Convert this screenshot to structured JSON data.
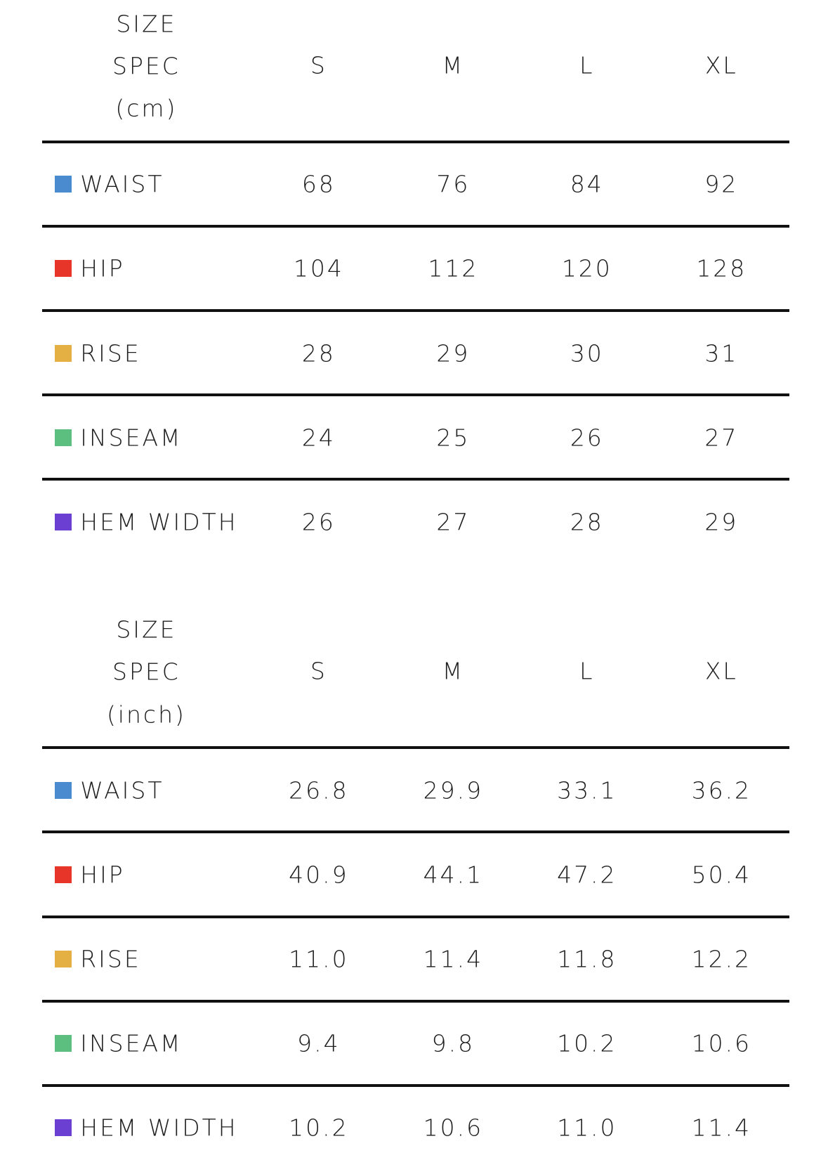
{
  "tables": [
    {
      "header": [
        "SIZE",
        "SPEC",
        "(cm)"
      ],
      "sizes": [
        "S",
        "M",
        "L",
        "XL"
      ],
      "rows": [
        {
          "label": "WAIST",
          "color": "#4a8bd0",
          "values": [
            "68",
            "76",
            "84",
            "92"
          ]
        },
        {
          "label": "HIP",
          "color": "#e8352a",
          "values": [
            "104",
            "112",
            "120",
            "128"
          ]
        },
        {
          "label": "RISE",
          "color": "#e5b043",
          "values": [
            "28",
            "29",
            "30",
            "31"
          ]
        },
        {
          "label": "INSEAM",
          "color": "#5cbf80",
          "values": [
            "24",
            "25",
            "26",
            "27"
          ]
        },
        {
          "label": "HEM WIDTH",
          "color": "#6a3fd2",
          "values": [
            "26",
            "27",
            "28",
            "29"
          ]
        }
      ]
    },
    {
      "header": [
        "SIZE",
        "SPEC",
        "(inch)"
      ],
      "sizes": [
        "S",
        "M",
        "L",
        "XL"
      ],
      "rows": [
        {
          "label": "WAIST",
          "color": "#4a8bd0",
          "values": [
            "26.8",
            "29.9",
            "33.1",
            "36.2"
          ]
        },
        {
          "label": "HIP",
          "color": "#e8352a",
          "values": [
            "40.9",
            "44.1",
            "47.2",
            "50.4"
          ]
        },
        {
          "label": "RISE",
          "color": "#e5b043",
          "values": [
            "11.0",
            "11.4",
            "11.8",
            "12.2"
          ]
        },
        {
          "label": "INSEAM",
          "color": "#5cbf80",
          "values": [
            "9.4",
            "9.8",
            "10.2",
            "10.6"
          ]
        },
        {
          "label": "HEM WIDTH",
          "color": "#6a3fd2",
          "values": [
            "10.2",
            "10.6",
            "11.0",
            "11.4"
          ]
        }
      ]
    }
  ]
}
